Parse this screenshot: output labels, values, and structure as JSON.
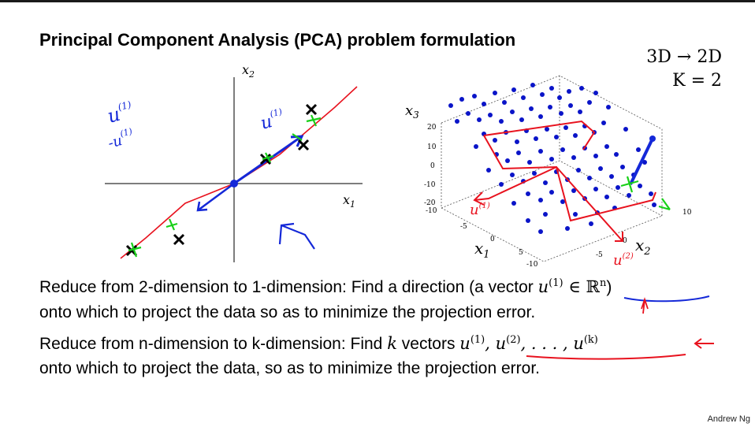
{
  "slide": {
    "title": "Principal Component Analysis (PCA) problem formulation",
    "top_right": {
      "line1": "3D → 2D",
      "line2": "K = 2"
    },
    "line1a": "Reduce from 2-dimension to 1-dimension: Find a direction (a vector ",
    "line1_vec": "u",
    "line1_sup": "(1)",
    "line1_space": " ∈ ℝ",
    "line1_n": "n",
    "line1_close": ")",
    "line2": "onto which to project the data so as to minimize the projection error.",
    "line3a": "Reduce from n-dimension to k-dimension: Find ",
    "line3_k": "k",
    "line3b": " vectors ",
    "line3_u": "u",
    "line3_s1": "(1)",
    "line3_comma1": ", u",
    "line3_s2": "(2)",
    "line3_mid": ", . . . , u",
    "line3_sk": "(k)",
    "line4": "onto which to project the data, so as to minimize the projection error.",
    "author": "Andrew Ng"
  },
  "plot2d": {
    "x1_label": "x",
    "x1_sub": "1",
    "x2_label": "x",
    "x2_sub": "2",
    "annotations": {
      "u1": "u",
      "u1_sup": "(1)",
      "neg_u1": "-u",
      "neg_u1_sup": "(1)"
    }
  },
  "plot3d": {
    "x3_label": "x",
    "x3_sub": "3",
    "x1_label": "x",
    "x1_sub": "1",
    "x2_label": "x",
    "x2_sub": "2",
    "z_ticks": [
      "20",
      "10",
      "0",
      "-10",
      "-20"
    ],
    "x1_ticks": [
      "-10",
      "-5",
      "0",
      "5",
      "10"
    ],
    "x2_ticks": [
      "-10",
      "-5",
      "0",
      "5",
      "10"
    ],
    "hand_labels": {
      "u1": "u",
      "u1_sup": "(1)",
      "u2": "u",
      "u2_sup": "(2)"
    }
  },
  "colors": {
    "data_point": "#0a14c8",
    "hand_red": "#e8121e",
    "hand_blue": "#1428d8",
    "hand_green": "#18d018"
  }
}
